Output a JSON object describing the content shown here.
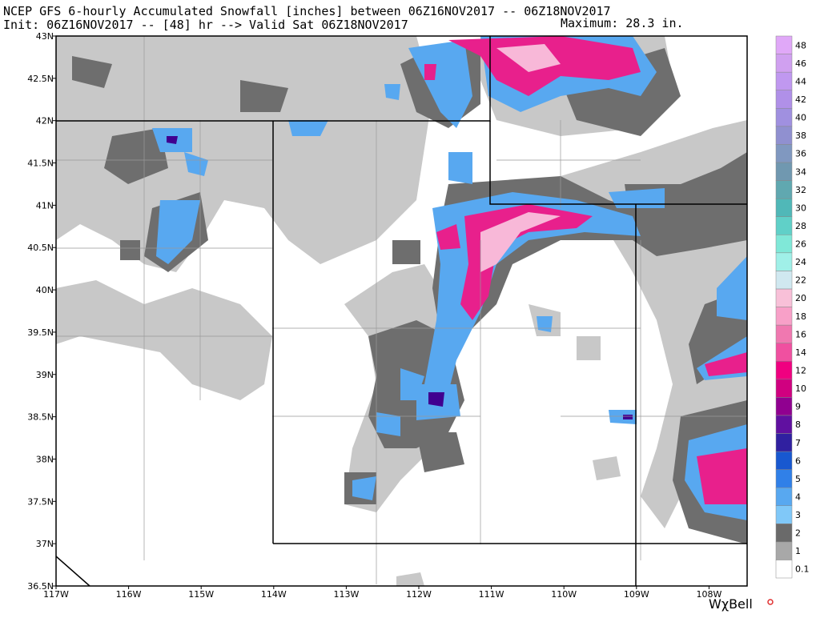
{
  "header": {
    "title": "NCEP GFS 6-hourly Accumulated Snowfall [inches] between 06Z16NOV2017 -- 06Z18NOV2017",
    "init": "Init: 06Z16NOV2017 -- [48] hr --> Valid Sat 06Z18NOV2017",
    "maximum": "Maximum:  28.3 in."
  },
  "map": {
    "lon_labels": [
      "117W",
      "116W",
      "115W",
      "114W",
      "113W",
      "112W",
      "111W",
      "110W",
      "109W",
      "108W"
    ],
    "lat_labels": [
      "43N",
      "42.5N",
      "42N",
      "41.5N",
      "41N",
      "40.5N",
      "40N",
      "39.5N",
      "39N",
      "38.5N",
      "38N",
      "37.5N",
      "37N",
      "36.5N"
    ]
  },
  "colorbar": {
    "labels": [
      "0.1",
      "1",
      "2",
      "3",
      "4",
      "5",
      "6",
      "7",
      "8",
      "9",
      "10",
      "12",
      "14",
      "16",
      "18",
      "20",
      "22",
      "24",
      "26",
      "28",
      "30",
      "32",
      "34",
      "36",
      "38",
      "40",
      "42",
      "44",
      "46",
      "48"
    ],
    "colors": [
      "#ffffff",
      "#a8a8a8",
      "#6a6a6a",
      "#80c8f8",
      "#58a8f0",
      "#3080e8",
      "#1858d0",
      "#3020a0",
      "#6010a0",
      "#900090",
      "#d00080",
      "#f00080",
      "#f050a0",
      "#f078b0",
      "#f8a0c8",
      "#f8c0d8",
      "#d0e8f0",
      "#a0f0e8",
      "#80e8d8",
      "#60d0c8",
      "#50b8b8",
      "#60a8b0",
      "#7098b0",
      "#8098c0",
      "#9090d0",
      "#a090e0",
      "#b090e8",
      "#c098f0",
      "#d0a0f0",
      "#e0a8f8"
    ]
  },
  "credit": "WχBell"
}
